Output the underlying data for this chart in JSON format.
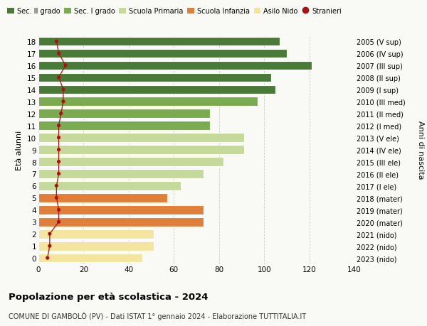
{
  "ages": [
    0,
    1,
    2,
    3,
    4,
    5,
    6,
    7,
    8,
    9,
    10,
    11,
    12,
    13,
    14,
    15,
    16,
    17,
    18
  ],
  "values": [
    46,
    51,
    51,
    73,
    73,
    57,
    63,
    73,
    82,
    91,
    91,
    76,
    76,
    97,
    105,
    103,
    121,
    110,
    107
  ],
  "foreigners": [
    4,
    5,
    5,
    9,
    9,
    8,
    8,
    9,
    9,
    9,
    9,
    9,
    10,
    11,
    11,
    9,
    12,
    9,
    8
  ],
  "right_labels": [
    "2023 (nido)",
    "2022 (nido)",
    "2021 (nido)",
    "2020 (mater)",
    "2019 (mater)",
    "2018 (mater)",
    "2017 (I ele)",
    "2016 (II ele)",
    "2015 (III ele)",
    "2014 (IV ele)",
    "2013 (V ele)",
    "2012 (I med)",
    "2011 (II med)",
    "2010 (III med)",
    "2009 (I sup)",
    "2008 (II sup)",
    "2007 (III sup)",
    "2006 (IV sup)",
    "2005 (V sup)"
  ],
  "bar_colors": [
    "#f5e49e",
    "#f5e49e",
    "#f5e49e",
    "#e07f3a",
    "#e07f3a",
    "#e07f3a",
    "#c5d99a",
    "#c5d99a",
    "#c5d99a",
    "#c5d99a",
    "#c5d99a",
    "#7aab50",
    "#7aab50",
    "#7aab50",
    "#4a7a38",
    "#4a7a38",
    "#4a7a38",
    "#4a7a38",
    "#4a7a38"
  ],
  "legend_labels": [
    "Sec. II grado",
    "Sec. I grado",
    "Scuola Primaria",
    "Scuola Infanzia",
    "Asilo Nido",
    "Stranieri"
  ],
  "legend_colors": [
    "#4a7a38",
    "#7aab50",
    "#c5d99a",
    "#e07f3a",
    "#f5e49e",
    "#aa1111"
  ],
  "title_bold": "Popolazione per età scolastica - 2024",
  "subtitle": "COMUNE DI GAMBOLÒ (PV) - Dati ISTAT 1° gennaio 2024 - Elaborazione TUTTITALIA.IT",
  "ylabel_left": "Età alunni",
  "ylabel_right": "Anni di nascita",
  "xlim": [
    0,
    140
  ],
  "xticks": [
    0,
    20,
    40,
    60,
    80,
    100,
    120,
    140
  ],
  "background_color": "#f9f9f5",
  "grid_color": "#cccccc",
  "bar_height": 0.75
}
